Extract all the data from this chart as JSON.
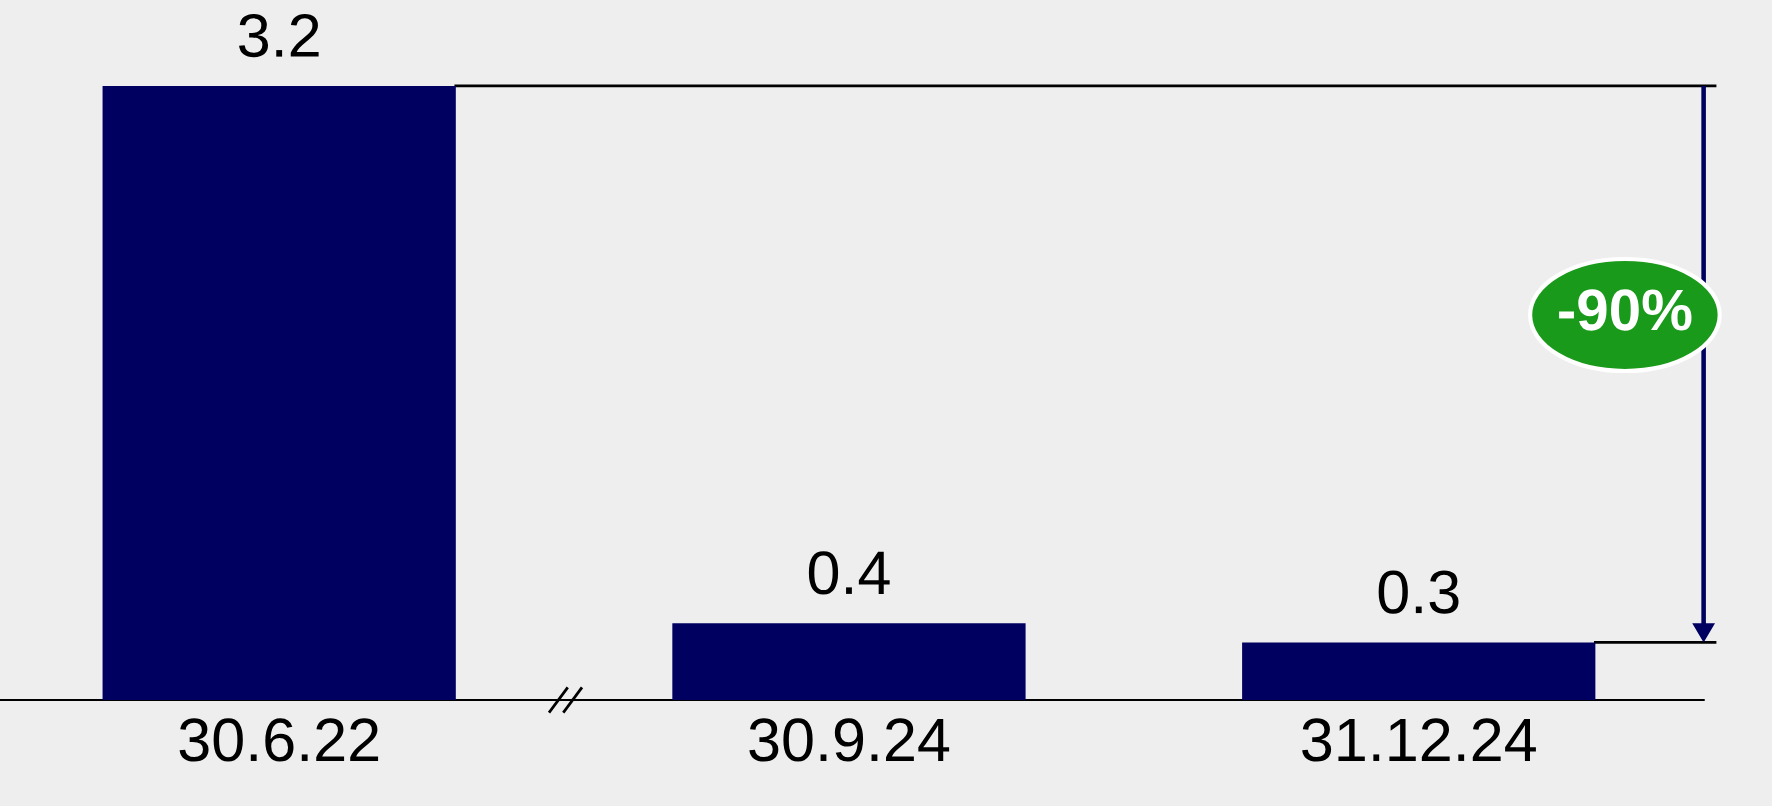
{
  "chart_data": {
    "type": "bar",
    "categories": [
      "30.6.22",
      "30.9.24",
      "31.12.24"
    ],
    "values": [
      3.2,
      0.4,
      0.3
    ],
    "color": "#000060",
    "data_labels": true,
    "ref_lines": [
      {
        "axis": "y",
        "value": 3.2,
        "color": "#000000"
      }
    ],
    "annotations": [
      "-90%"
    ]
  }
}
